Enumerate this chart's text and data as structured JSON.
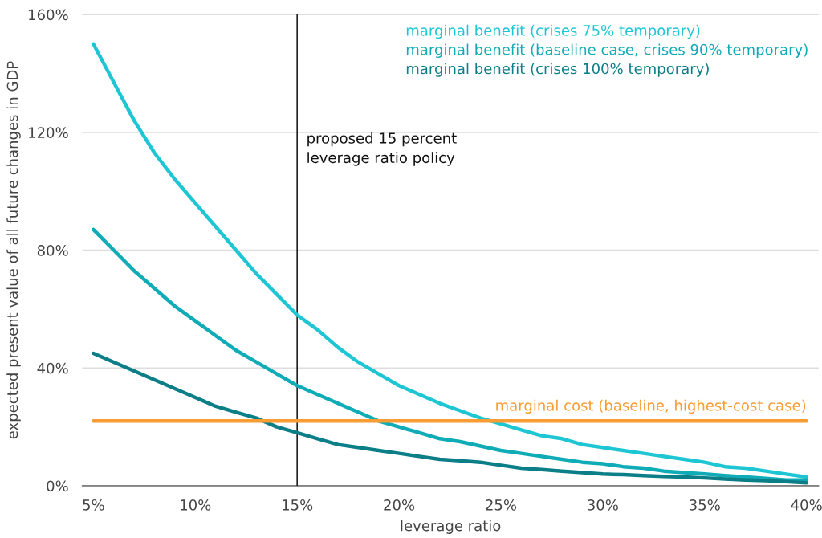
{
  "chart_data": {
    "type": "line",
    "xlabel": "leverage ratio",
    "ylabel": "expected present value of all future changes in GDP",
    "x": [
      5,
      6,
      7,
      8,
      9,
      10,
      11,
      12,
      13,
      14,
      15,
      16,
      17,
      18,
      19,
      20,
      21,
      22,
      23,
      24,
      25,
      26,
      27,
      28,
      29,
      30,
      31,
      32,
      33,
      34,
      35,
      36,
      37,
      38,
      39,
      40
    ],
    "series": [
      {
        "name": "marginal benefit (crises 75% temporary)",
        "color": "#1ec6d4",
        "values": [
          150,
          137,
          124,
          113,
          104,
          96,
          88,
          80,
          72,
          65,
          58,
          53,
          47,
          42,
          38,
          34,
          31,
          28,
          25.5,
          23,
          21,
          19,
          17,
          16,
          14,
          13,
          12,
          11,
          10,
          9,
          8,
          6.5,
          6,
          5,
          4,
          3
        ]
      },
      {
        "name": "marginal benefit (baseline case, crises 90% temporary)",
        "color": "#0fabb6",
        "values": [
          87,
          80,
          73,
          67,
          61,
          56,
          51,
          46,
          42,
          38,
          34,
          31,
          28,
          25,
          22,
          20,
          18,
          16,
          15,
          13.5,
          12,
          11,
          10,
          9,
          8,
          7.5,
          6.5,
          6,
          5,
          4.5,
          4,
          3.5,
          3,
          2.5,
          2,
          2
        ]
      },
      {
        "name": "marginal benefit (crises 100% temporary)",
        "color": "#0b7e87",
        "values": [
          45,
          42,
          39,
          36,
          33,
          30,
          27,
          25,
          23,
          20,
          18,
          16,
          14,
          13,
          12,
          11,
          10,
          9,
          8.5,
          8,
          7,
          6,
          5.5,
          5,
          4.5,
          4,
          3.8,
          3.5,
          3.2,
          3,
          2.7,
          2.3,
          2,
          1.8,
          1.4,
          1
        ]
      },
      {
        "name": "marginal cost (baseline, highest-cost case)",
        "color": "#f89c33",
        "x": [
          5,
          40
        ],
        "values": [
          22,
          22
        ]
      }
    ],
    "ref_lines": [
      {
        "axis": "x",
        "value": 15,
        "label": "proposed 15 percent\nleverage ratio policy",
        "color": "#111111"
      }
    ],
    "xlim": [
      4.45,
      40.6
    ],
    "xticks": [
      {
        "value": 5,
        "label": "5%"
      },
      {
        "value": 10,
        "label": "10%"
      },
      {
        "value": 15,
        "label": "15%"
      },
      {
        "value": 20,
        "label": "20%"
      },
      {
        "value": 25,
        "label": "25%"
      },
      {
        "value": 30,
        "label": "30%"
      },
      {
        "value": 35,
        "label": "35%"
      },
      {
        "value": 40,
        "label": "40%"
      }
    ],
    "ylim": [
      0,
      160
    ],
    "yticks": [
      {
        "value": 0,
        "label": "0%"
      },
      {
        "value": 40,
        "label": "40%"
      },
      {
        "value": 80,
        "label": "80%"
      },
      {
        "value": 120,
        "label": "120%"
      },
      {
        "value": 160,
        "label": "160%"
      }
    ],
    "grid": "y",
    "legend": "top right",
    "marker": "none",
    "line_style": "solid"
  }
}
